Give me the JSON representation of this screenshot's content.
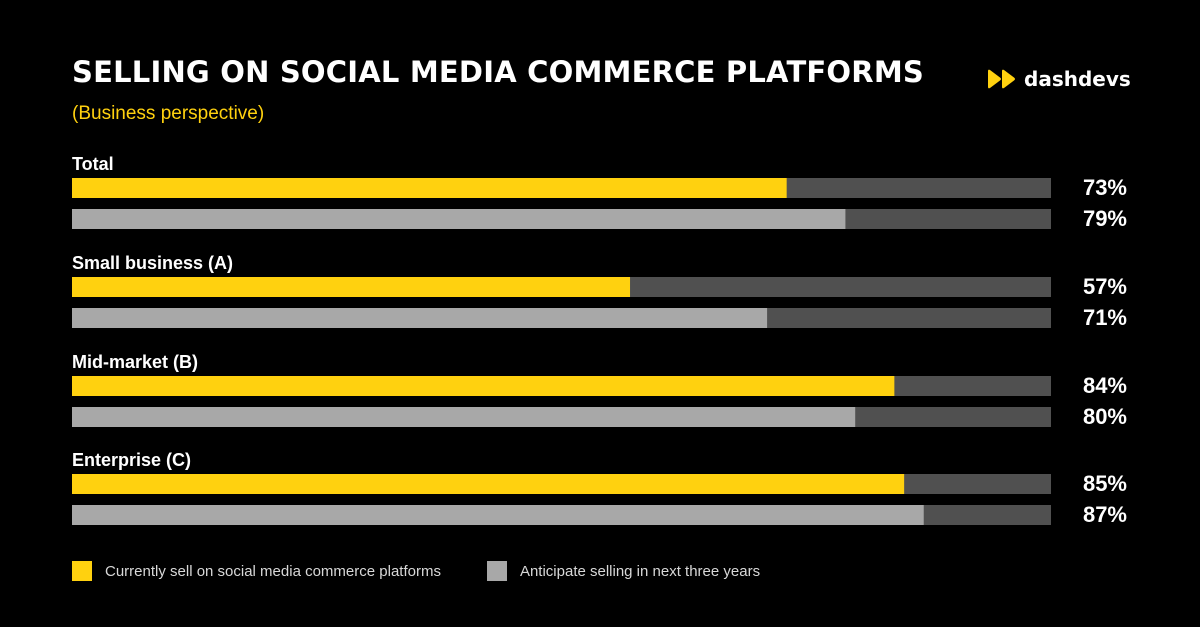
{
  "header": {
    "title": "SELLING ON SOCIAL MEDIA COMMERCE PLATFORMS",
    "subtitle": "(Business perspective)"
  },
  "brand": {
    "name": "dashdevs",
    "icon": "double-play-icon"
  },
  "colors": {
    "background": "#000000",
    "current": "#FFD10F",
    "anticipate": "#A8A8A8",
    "track": "#505050",
    "text": "#FFFFFF"
  },
  "chart_data": {
    "type": "bar",
    "orientation": "horizontal",
    "title": "SELLING ON SOCIAL MEDIA COMMERCE PLATFORMS",
    "subtitle": "(Business perspective)",
    "xlim": [
      0,
      100
    ],
    "unit": "%",
    "grid": false,
    "legend_position": "bottom-left",
    "categories": [
      "Total",
      "Small business (A)",
      "Mid-market (B)",
      "Enterprise (C)"
    ],
    "series": [
      {
        "name": "Currently sell on social media commerce platforms",
        "color": "#FFD10F",
        "values": [
          73,
          57,
          84,
          85
        ],
        "labels": [
          "73%",
          "57%",
          "84%",
          "85%"
        ]
      },
      {
        "name": "Anticipate selling in next three years",
        "color": "#A8A8A8",
        "values": [
          79,
          71,
          80,
          87
        ],
        "labels": [
          "79%",
          "71%",
          "80%",
          "87%"
        ]
      }
    ]
  }
}
